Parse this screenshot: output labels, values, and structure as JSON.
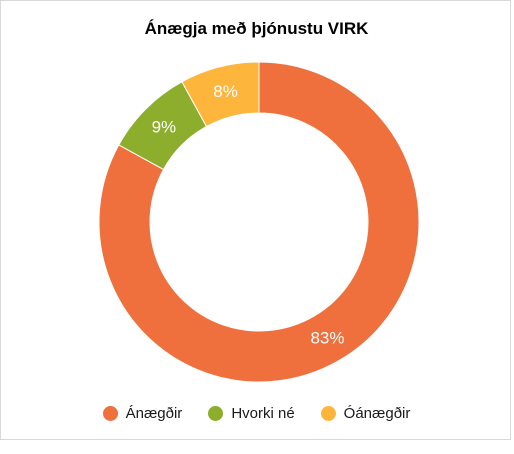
{
  "chart_data": {
    "type": "pie",
    "variant": "donut",
    "title": "Ánægja með þjónustu VIRK",
    "slices": [
      {
        "label": "Ánægðir",
        "value": 83,
        "display": "83%",
        "color": "#EF6F3D"
      },
      {
        "label": "Hvorki né",
        "value": 9,
        "display": "9%",
        "color": "#8CAE2C"
      },
      {
        "label": "Óánægðir",
        "value": 8,
        "display": "8%",
        "color": "#FDB53C"
      }
    ],
    "legend_position": "bottom"
  }
}
